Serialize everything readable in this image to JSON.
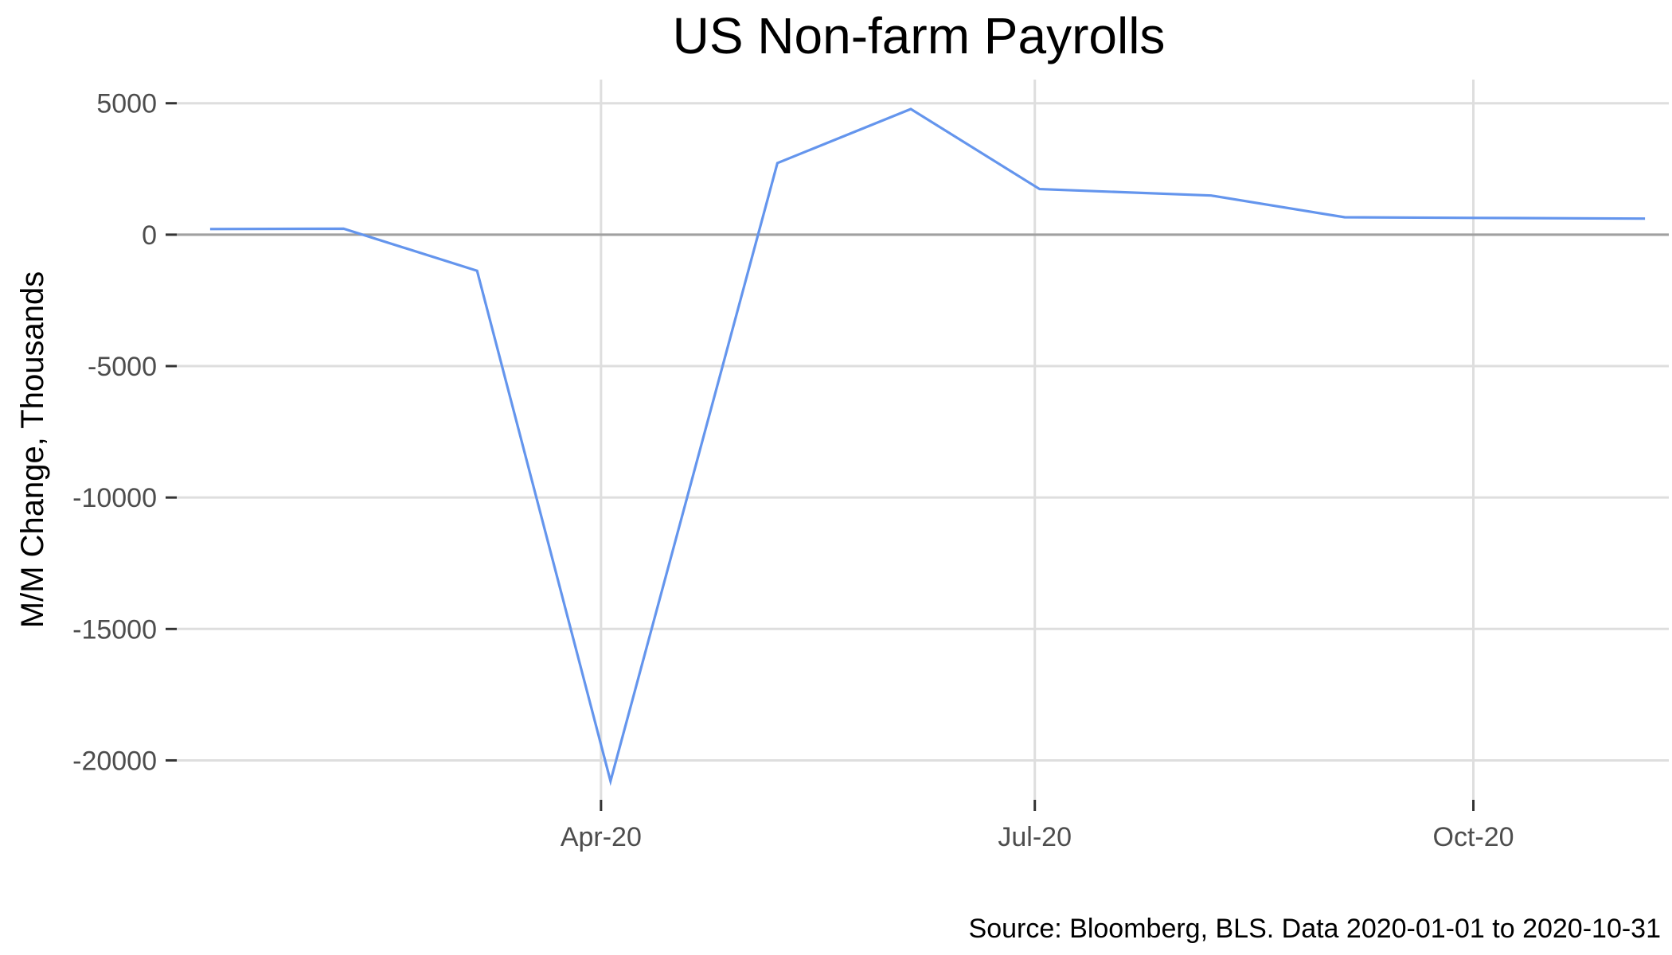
{
  "chart_data": {
    "type": "line",
    "title": "US Non-farm Payrolls",
    "xlabel": "",
    "ylabel": "M/M Change, Thousands",
    "caption": "Source: Bloomberg, BLS. Data 2020-01-01 to 2020-10-31",
    "x_ticks": [
      {
        "date": "2020-04-01",
        "label": "Apr-20"
      },
      {
        "date": "2020-07-01",
        "label": "Jul-20"
      },
      {
        "date": "2020-10-01",
        "label": "Oct-20"
      }
    ],
    "y_ticks": [
      5000,
      0,
      -5000,
      -10000,
      -15000,
      -20000
    ],
    "y_tick_labels": [
      "5000",
      "0",
      "-5000",
      "-10000",
      "-15000",
      "-20000"
    ],
    "xlim": [
      "2020-01-03",
      "2020-11-11"
    ],
    "ylim": [
      -21500,
      5900
    ],
    "zero_line": true,
    "grid": true,
    "series": [
      {
        "color": "#6495ED",
        "x": [
          "2020-01-10",
          "2020-02-07",
          "2020-03-06",
          "2020-04-03",
          "2020-05-08",
          "2020-06-05",
          "2020-07-02",
          "2020-08-07",
          "2020-09-04",
          "2020-10-02",
          "2020-11-06"
        ],
        "values": [
          214,
          225,
          -1373,
          -20787,
          2725,
          4781,
          1734,
          1489,
          661,
          638,
          610
        ]
      }
    ]
  }
}
